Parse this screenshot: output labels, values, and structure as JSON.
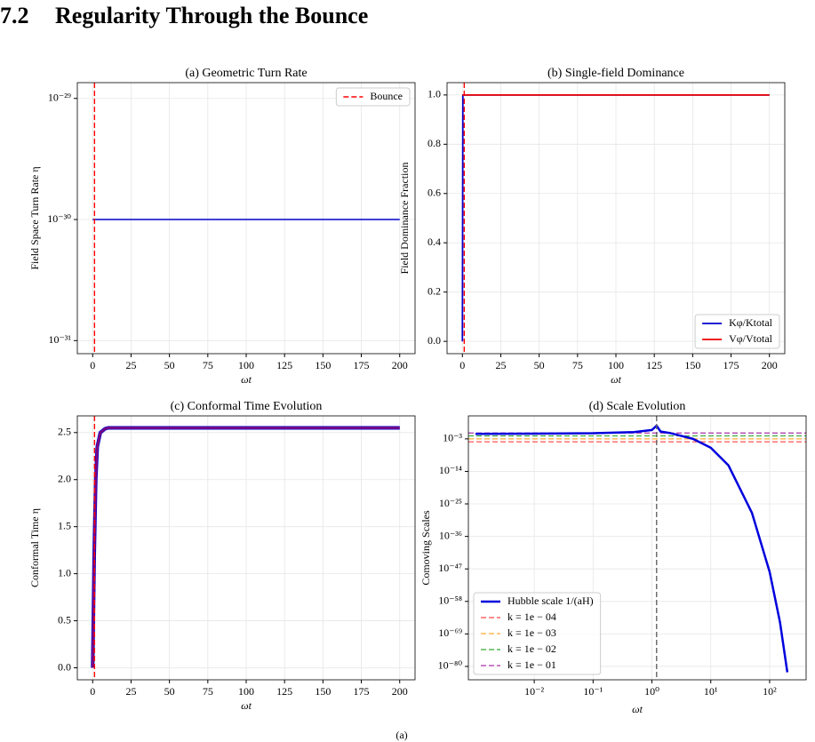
{
  "section_number": "7.2",
  "section_title": "Regularity Through the Bounce",
  "caption": "(a)",
  "chart_data": [
    {
      "type": "line",
      "title": "(a) Geometric Turn Rate",
      "xlabel": "ωt",
      "ylabel": "Field Space Turn Rate η",
      "xlim": [
        -10,
        210
      ],
      "ylim": [
        7.8e-32,
        1.35e-29
      ],
      "yscale": "log",
      "grid": true,
      "legend": "upper right",
      "xticks": [
        0,
        25,
        50,
        75,
        100,
        125,
        150,
        175,
        200
      ],
      "yticks": [
        {
          "value": 1e-31,
          "label": "10⁻³¹"
        },
        {
          "value": 1e-30,
          "label": "10⁻³⁰"
        },
        {
          "value": 1e-29,
          "label": "10⁻²⁹"
        }
      ],
      "series": [
        {
          "color": "#0000cc",
          "linewidth": 1.5,
          "x": [
            0,
            200
          ],
          "values": [
            1e-30,
            1e-30
          ]
        }
      ],
      "vlines": [
        {
          "name": "Bounce",
          "x": 1.2,
          "color": "#ff0000",
          "linestyle": "--"
        }
      ]
    },
    {
      "type": "line",
      "title": "(b) Single-field Dominance",
      "xlabel": "ωt",
      "ylabel": "Field Dominance Fraction",
      "xlim": [
        -10,
        210
      ],
      "ylim": [
        -0.05,
        1.05
      ],
      "grid": true,
      "legend": "lower right",
      "xticks": [
        0,
        25,
        50,
        75,
        100,
        125,
        150,
        175,
        200
      ],
      "yticks": [
        {
          "value": 0,
          "label": "0.0"
        },
        0.2,
        0.4,
        0.6,
        0.8,
        {
          "value": 1,
          "label": "1.0"
        }
      ],
      "series": [
        {
          "name": "Kφ/Ktotal",
          "color": "#0000cc",
          "linewidth": 1.8,
          "x": [
            0,
            0.3,
            200
          ],
          "values": [
            0,
            1,
            1
          ]
        },
        {
          "name": "Vφ/Vtotal",
          "color": "#ee0000",
          "linewidth": 1.8,
          "x": [
            0,
            200
          ],
          "values": [
            1,
            1
          ]
        }
      ],
      "vlines": [
        {
          "x": 1.2,
          "color": "#ff0000",
          "linestyle": "--"
        }
      ]
    },
    {
      "type": "line",
      "title": "(c) Conformal Time Evolution",
      "xlabel": "ωt",
      "ylabel": "Conformal Time η",
      "xlim": [
        -10,
        210
      ],
      "ylim": [
        -0.1275,
        2.6775
      ],
      "grid": true,
      "xticks": [
        0,
        25,
        50,
        75,
        100,
        125,
        150,
        175,
        200
      ],
      "yticks": [
        {
          "value": 0,
          "label": "0.0"
        },
        0.5,
        {
          "value": 1,
          "label": "1.0"
        },
        1.5,
        {
          "value": 2,
          "label": "2.0"
        },
        2.5
      ],
      "series": [
        {
          "color": "#0000cc",
          "linewidth": 4,
          "x": [
            0,
            1,
            2,
            3,
            5,
            8,
            10,
            200
          ],
          "values": [
            0,
            1.2,
            2.0,
            2.35,
            2.5,
            2.54,
            2.55,
            2.55
          ]
        },
        {
          "color": "#800080",
          "linewidth": 2.5,
          "x": [
            0,
            1,
            2,
            3,
            5,
            8,
            10,
            200
          ],
          "values": [
            0,
            1.2,
            2.0,
            2.35,
            2.5,
            2.54,
            2.55,
            2.55
          ]
        }
      ],
      "vlines": [
        {
          "x": 1.2,
          "color": "#ff0000",
          "linestyle": "--"
        }
      ]
    },
    {
      "type": "line",
      "title": "(d) Scale Evolution",
      "xlabel": "ωt",
      "ylabel": "Comoving Scales",
      "xlim": [
        0.00076,
        417
      ],
      "ylim": [
        3e-85,
        60000.0
      ],
      "xscale": "log",
      "yscale": "log",
      "grid": true,
      "legend": "lower left",
      "xticks": [
        {
          "value": 0.01,
          "label": "10⁻²"
        },
        {
          "value": 0.1,
          "label": "10⁻¹"
        },
        {
          "value": 1,
          "label": "10⁰"
        },
        {
          "value": 10,
          "label": "10¹"
        },
        {
          "value": 100,
          "label": "10²"
        }
      ],
      "yticks": [
        {
          "value": 1e-80,
          "label": "10⁻⁸⁰"
        },
        {
          "value": 1e-69,
          "label": "10⁻⁶⁹"
        },
        {
          "value": 1e-58,
          "label": "10⁻⁵⁸"
        },
        {
          "value": 1e-47,
          "label": "10⁻⁴⁷"
        },
        {
          "value": 1e-36,
          "label": "10⁻³⁶"
        },
        {
          "value": 1e-25,
          "label": "10⁻²⁵"
        },
        {
          "value": 1e-14,
          "label": "10⁻¹⁴"
        },
        {
          "value": 0.001,
          "label": "10⁻³"
        }
      ],
      "series": [
        {
          "name": "Hubble scale 1/(aH)",
          "color": "#0000dd",
          "linewidth": 2.5,
          "x": [
            0.001,
            0.01,
            0.1,
            0.5,
            1.0,
            1.2,
            1.4,
            2,
            5,
            10,
            20,
            50,
            100,
            150,
            200
          ],
          "values": [
            0.05,
            0.06,
            0.08,
            0.2,
            1,
            30,
            0.3,
            0.1,
            0.001,
            1e-06,
            1e-12,
            1e-28,
            1e-48,
            1e-65,
            1e-82
          ]
        }
      ],
      "hlines": [
        {
          "name": "k = 1e − 04",
          "y": 0.0001,
          "color": "#ff4444",
          "linestyle": "--"
        },
        {
          "name": "k = 1e − 03",
          "y": 0.001,
          "color": "#ffaa33",
          "linestyle": "--"
        },
        {
          "name": "k = 1e − 02",
          "y": 0.01,
          "color": "#33aa33",
          "linestyle": "--"
        },
        {
          "name": "k = 1e − 01",
          "y": 0.1,
          "color": "#aa33aa",
          "linestyle": "--"
        }
      ],
      "vlines": [
        {
          "x": 1.2,
          "color": "#666666",
          "linestyle": "--"
        }
      ]
    }
  ]
}
